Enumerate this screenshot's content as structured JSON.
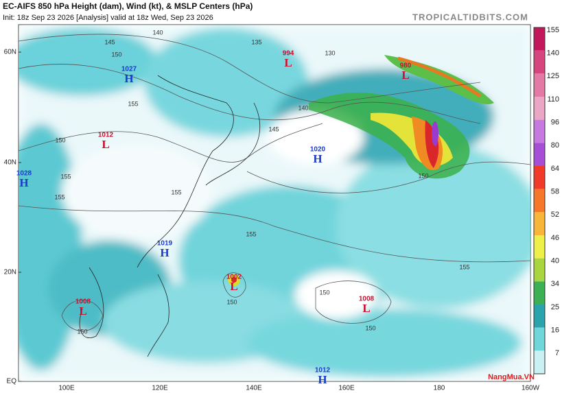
{
  "header": {
    "title": "EC-AIFS 850 hPa Height (dam), Wind (kt), & MSLP Centers (hPa)",
    "subtitle": "Init: 18z Sep 23 2026   [Analysis]   valid at 18z Wed, Sep 23 2026",
    "source": "TROPICALTIDBITS.COM"
  },
  "map": {
    "lat_labels": [
      "60N",
      "40N",
      "20N",
      "EQ"
    ],
    "lon_labels": [
      "100E",
      "120E",
      "140E",
      "160E",
      "180",
      "160W"
    ],
    "centers": [
      {
        "symbol": "H",
        "pressure": "1027"
      },
      {
        "symbol": "L",
        "pressure": "1012"
      },
      {
        "symbol": "H",
        "pressure": "1028"
      },
      {
        "symbol": "L",
        "pressure": "994"
      },
      {
        "symbol": "L",
        "pressure": "980"
      },
      {
        "symbol": "H",
        "pressure": "1020"
      },
      {
        "symbol": "H",
        "pressure": "1019"
      },
      {
        "symbol": "L",
        "pressure": "1002"
      },
      {
        "symbol": "L",
        "pressure": "1008"
      },
      {
        "symbol": "L",
        "pressure": "1008"
      },
      {
        "symbol": "H",
        "pressure": "1012"
      }
    ],
    "contour_labels": [
      "140",
      "145",
      "150",
      "135",
      "130",
      "155",
      "150",
      "155",
      "155",
      "155",
      "140",
      "145",
      "155",
      "150",
      "150",
      "150",
      "155",
      "150",
      "150"
    ]
  },
  "colorbar": {
    "ticks": [
      155,
      140,
      125,
      110,
      96,
      80,
      64,
      58,
      52,
      46,
      40,
      34,
      25,
      16,
      7
    ]
  },
  "watermark": "NangMua.VN"
}
